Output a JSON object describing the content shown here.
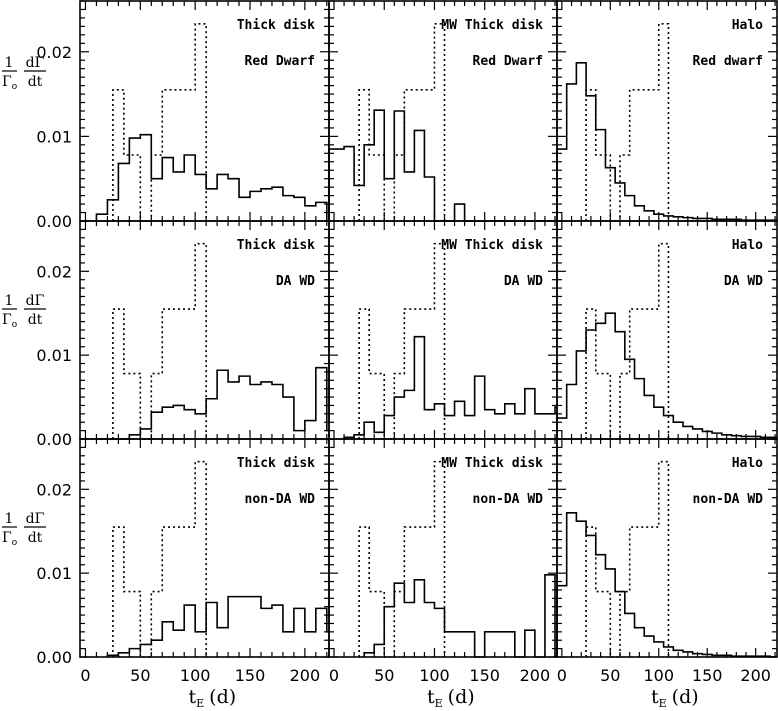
{
  "chart_data": {
    "type": "histogram-grid",
    "rows": 3,
    "cols": 3,
    "xlim": [
      -5,
      222
    ],
    "ylim": [
      0,
      0.026
    ],
    "x_ticks": [
      0,
      50,
      100,
      150,
      200
    ],
    "x_tick_labels": [
      "0",
      "50",
      "100",
      "150",
      "200"
    ],
    "y_ticks": [
      0,
      0.01,
      0.02
    ],
    "y_tick_labels": [
      "0.00",
      "0.01",
      "0.02"
    ],
    "xlabel": {
      "main": "t",
      "sub": "E",
      "unit": "(d)"
    },
    "ylabel": {
      "num": "1",
      "den_main": "Γ",
      "den_sub": "o",
      "frac_top": "dΓ",
      "frac_bottom": "dt"
    },
    "dotted_reference": {
      "edges": [
        25,
        35,
        50,
        60,
        70,
        100,
        110
      ],
      "values": [
        0.0155,
        0.0078,
        0.0,
        0.0078,
        0.0155,
        0.0233
      ]
    },
    "panels": [
      {
        "row": 0,
        "col": 0,
        "label1": "Thick disk",
        "label2": "Red Dwarf",
        "bin_start": 10,
        "bin_width": 10,
        "values": [
          0.0008,
          0.0025,
          0.0068,
          0.0098,
          0.0102,
          0.005,
          0.0075,
          0.0058,
          0.0078,
          0.0055,
          0.0038,
          0.0055,
          0.005,
          0.0028,
          0.0035,
          0.0038,
          0.004,
          0.003,
          0.0028,
          0.0018,
          0.0022
        ]
      },
      {
        "row": 0,
        "col": 1,
        "label1": "MW Thick disk",
        "label2": "Red Dwarf",
        "bin_start": -10,
        "bin_width": 10,
        "values": [
          0.0085,
          0.0085,
          0.0088,
          0.0042,
          0.009,
          0.0131,
          0.005,
          0.013,
          0.0058,
          0.0107,
          0.0052,
          0,
          0,
          0.002,
          0,
          0,
          0,
          0,
          0,
          0,
          0,
          0,
          0
        ]
      },
      {
        "row": 0,
        "col": 2,
        "label1": "Halo",
        "label2": "Red dwarf",
        "bin_start": -5,
        "bin_width": 10,
        "values": [
          0.0085,
          0.0162,
          0.0187,
          0.0148,
          0.0108,
          0.0063,
          0.0045,
          0.003,
          0.0018,
          0.0012,
          0.0008,
          0.0006,
          0.0005,
          0.0004,
          0.0003,
          0.0003,
          0.0002,
          0.0002,
          0.0002,
          0.0001,
          0.0001,
          0.0001,
          0.0001
        ]
      },
      {
        "row": 1,
        "col": 0,
        "label1": "Thick disk",
        "label2": "DA WD",
        "bin_start": 10,
        "bin_width": 10,
        "values": [
          0,
          0,
          0,
          0.0005,
          0.0012,
          0.0032,
          0.0038,
          0.004,
          0.0035,
          0.003,
          0.0048,
          0.0082,
          0.0068,
          0.0075,
          0.0065,
          0.0068,
          0.0065,
          0.005,
          0.001,
          0.0022,
          0.0085,
          0.001
        ]
      },
      {
        "row": 1,
        "col": 1,
        "label1": "MW Thick disk",
        "label2": "DA WD",
        "bin_start": 10,
        "bin_width": 10,
        "values": [
          0.0002,
          0.0005,
          0.002,
          0.0008,
          0.0028,
          0.005,
          0.0058,
          0.0122,
          0.0035,
          0.0042,
          0.0028,
          0.0045,
          0.0028,
          0.0075,
          0.0035,
          0.003,
          0.0042,
          0.003,
          0.006,
          0.003,
          0.003,
          0.0038
        ]
      },
      {
        "row": 1,
        "col": 2,
        "label1": "Halo",
        "label2": "DA WD",
        "bin_start": -5,
        "bin_width": 10,
        "values": [
          0.0025,
          0.0065,
          0.0105,
          0.013,
          0.0138,
          0.015,
          0.0128,
          0.0095,
          0.0072,
          0.0052,
          0.0038,
          0.0028,
          0.002,
          0.0015,
          0.0012,
          0.0009,
          0.0007,
          0.0005,
          0.0004,
          0.0003,
          0.0003,
          0.0002,
          0.0002
        ]
      },
      {
        "row": 2,
        "col": 0,
        "label1": "Thick disk",
        "label2": "non-DA WD",
        "bin_start": 20,
        "bin_width": 10,
        "values": [
          0.0002,
          0.0005,
          0.001,
          0.0015,
          0.002,
          0.0042,
          0.0032,
          0.0062,
          0.003,
          0.0065,
          0.0035,
          0.0072,
          0.0072,
          0.0072,
          0.0058,
          0.0062,
          0.003,
          0.0058,
          0.003,
          0.0058,
          0.003
        ]
      },
      {
        "row": 2,
        "col": 1,
        "label1": "MW Thick disk",
        "label2": "non-DA WD",
        "bin_start": 30,
        "bin_width": 10,
        "values": [
          0.0005,
          0.0015,
          0.006,
          0.0088,
          0.0065,
          0.0092,
          0.0065,
          0.0058,
          0.003,
          0.003,
          0.003,
          0.0,
          0.003,
          0.003,
          0.003,
          0.0,
          0.0032,
          0.0,
          0.0098
        ]
      },
      {
        "row": 2,
        "col": 2,
        "label1": "Halo",
        "label2": "non-DA WD",
        "bin_start": -5,
        "bin_width": 10,
        "values": [
          0.0085,
          0.0172,
          0.0162,
          0.0145,
          0.0122,
          0.0105,
          0.0078,
          0.0052,
          0.0035,
          0.0025,
          0.0018,
          0.0012,
          0.0008,
          0.0006,
          0.0004,
          0.0003,
          0.0002,
          0.0002,
          0.0001,
          0.0001,
          0.0001,
          0.0001,
          0.0
        ]
      }
    ]
  }
}
